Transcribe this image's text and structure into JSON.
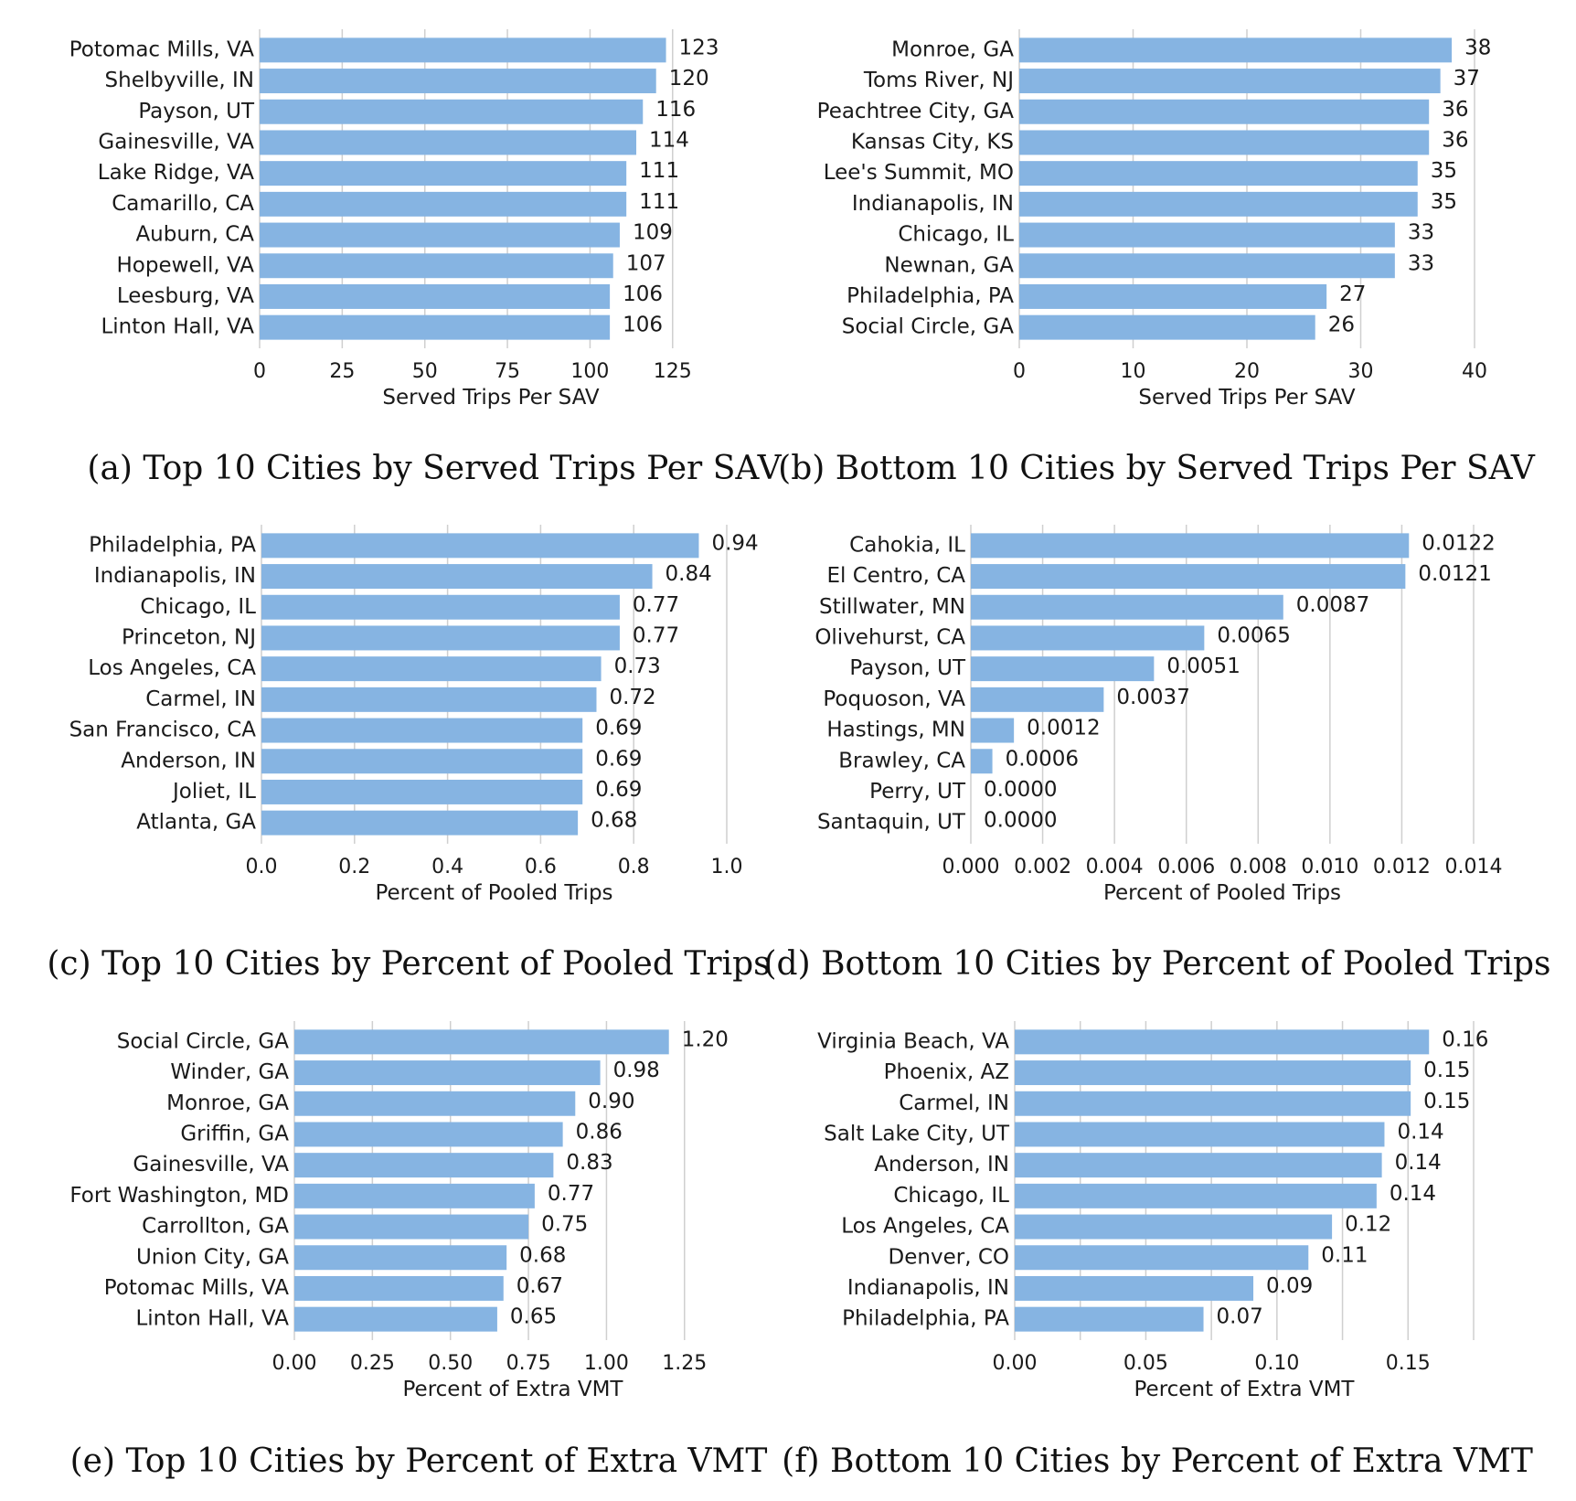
{
  "chart_data": [
    {
      "type": "bar",
      "orientation": "horizontal",
      "caption": "(a) Top 10 Cities by Served Trips Per SAV",
      "xlabel": "Served Trips Per SAV",
      "xlim": [
        0,
        140
      ],
      "xticks": [
        0,
        25,
        50,
        75,
        100,
        125
      ],
      "tick_labels": [
        "0",
        "25",
        "50",
        "75",
        "100",
        "125"
      ],
      "grid": "vertical",
      "categories": [
        "Potomac Mills, VA",
        "Shelbyville, IN",
        "Payson, UT",
        "Gainesville, VA",
        "Lake Ridge, VA",
        "Camarillo, CA",
        "Auburn, CA",
        "Hopewell, VA",
        "Leesburg, VA",
        "Linton Hall, VA"
      ],
      "values": [
        123,
        120,
        116,
        114,
        111,
        111,
        109,
        107,
        106,
        106
      ],
      "value_labels": [
        "123",
        "120",
        "116",
        "114",
        "111",
        "111",
        "109",
        "107",
        "106",
        "106"
      ],
      "bar_color": "#86b4e2"
    },
    {
      "type": "bar",
      "orientation": "horizontal",
      "caption": "(b) Bottom 10 Cities by Served Trips Per SAV",
      "xlabel": "Served Trips Per SAV",
      "xlim": [
        0,
        40
      ],
      "xticks": [
        0,
        10,
        20,
        30,
        40
      ],
      "tick_labels": [
        "0",
        "10",
        "20",
        "30",
        "40"
      ],
      "grid": "vertical",
      "categories": [
        "Monroe, GA",
        "Toms River, NJ",
        "Peachtree City, GA",
        "Kansas City, KS",
        "Lee's Summit, MO",
        "Indianapolis, IN",
        "Chicago, IL",
        "Newnan, GA",
        "Philadelphia, PA",
        "Social Circle, GA"
      ],
      "values": [
        38,
        37,
        36,
        36,
        35,
        35,
        33,
        33,
        27,
        26
      ],
      "value_labels": [
        "38",
        "37",
        "36",
        "36",
        "35",
        "35",
        "33",
        "33",
        "27",
        "26"
      ],
      "bar_color": "#86b4e2"
    },
    {
      "type": "bar",
      "orientation": "horizontal",
      "caption": "(c) Top 10 Cities by Percent of Pooled Trips",
      "xlabel": "Percent of Pooled Trips",
      "xlim": [
        0,
        1.0
      ],
      "xticks": [
        0,
        0.2,
        0.4,
        0.6,
        0.8,
        1.0
      ],
      "tick_labels": [
        "0.0",
        "0.2",
        "0.4",
        "0.6",
        "0.8",
        "1.0"
      ],
      "grid": "vertical",
      "categories": [
        "Philadelphia, PA",
        "Indianapolis, IN",
        "Chicago, IL",
        "Princeton, NJ",
        "Los Angeles, CA",
        "Carmel, IN",
        "San Francisco, CA",
        "Anderson, IN",
        "Joliet, IL",
        "Atlanta, GA"
      ],
      "values": [
        0.94,
        0.84,
        0.77,
        0.77,
        0.73,
        0.72,
        0.69,
        0.69,
        0.69,
        0.68
      ],
      "value_labels": [
        "0.94",
        "0.84",
        "0.77",
        "0.77",
        "0.73",
        "0.72",
        "0.69",
        "0.69",
        "0.69",
        "0.68"
      ],
      "bar_color": "#86b4e2"
    },
    {
      "type": "bar",
      "orientation": "horizontal",
      "caption": "(d) Bottom 10 Cities by Percent of Pooled Trips",
      "xlabel": "Percent of Pooled Trips",
      "xlim": [
        0,
        0.014
      ],
      "xticks": [
        0,
        0.002,
        0.004,
        0.006,
        0.008,
        0.01,
        0.012,
        0.014
      ],
      "tick_labels": [
        "0.000",
        "0.002",
        "0.004",
        "0.006",
        "0.008",
        "0.010",
        "0.012",
        "0.014"
      ],
      "grid": "vertical",
      "categories": [
        "Cahokia, IL",
        "El Centro, CA",
        "Stillwater, MN",
        "Olivehurst, CA",
        "Payson, UT",
        "Poquoson, VA",
        "Hastings, MN",
        "Brawley, CA",
        "Perry, UT",
        "Santaquin, UT"
      ],
      "values": [
        0.0122,
        0.0121,
        0.0087,
        0.0065,
        0.0051,
        0.0037,
        0.0012,
        0.0006,
        0.0,
        0.0
      ],
      "value_labels": [
        "0.0122",
        "0.0121",
        "0.0087",
        "0.0065",
        "0.0051",
        "0.0037",
        "0.0012",
        "0.0006",
        "0.0000",
        "0.0000"
      ],
      "bar_color": "#86b4e2"
    },
    {
      "type": "bar",
      "orientation": "horizontal",
      "caption": "(e) Top 10 Cities by Percent of Extra VMT",
      "xlabel": "Percent of Extra VMT",
      "xlim": [
        0,
        1.4
      ],
      "xticks": [
        0,
        0.25,
        0.5,
        0.75,
        1.0,
        1.25
      ],
      "tick_labels": [
        "0.00",
        "0.25",
        "0.50",
        "0.75",
        "1.00",
        "1.25"
      ],
      "grid": "vertical",
      "categories": [
        "Social Circle, GA",
        "Winder, GA",
        "Monroe, GA",
        "Griffin, GA",
        "Gainesville, VA",
        "Fort Washington, MD",
        "Carrollton, GA",
        "Union City, GA",
        "Potomac Mills, VA",
        "Linton Hall, VA"
      ],
      "values": [
        1.2,
        0.98,
        0.9,
        0.86,
        0.83,
        0.77,
        0.75,
        0.68,
        0.67,
        0.65
      ],
      "value_labels": [
        "1.20",
        "0.98",
        "0.90",
        "0.86",
        "0.83",
        "0.77",
        "0.75",
        "0.68",
        "0.67",
        "0.65"
      ],
      "bar_color": "#86b4e2"
    },
    {
      "type": "bar",
      "orientation": "horizontal",
      "caption": "(f) Bottom 10 Cities by Percent of Extra VMT",
      "xlabel": "Percent of Extra VMT",
      "xlim": [
        0,
        0.175
      ],
      "xticks": [
        0,
        0.05,
        0.1,
        0.15
      ],
      "tick_labels": [
        "0.00",
        "0.05",
        "0.10",
        "0.15"
      ],
      "minor_grid": [
        0.025,
        0.075,
        0.125,
        0.175
      ],
      "grid": "vertical",
      "categories": [
        "Virginia Beach, VA",
        "Phoenix, AZ",
        "Carmel, IN",
        "Salt Lake City, UT",
        "Anderson, IN",
        "Chicago, IL",
        "Los Angeles, CA",
        "Denver, CO",
        "Indianapolis, IN",
        "Philadelphia, PA"
      ],
      "values": [
        0.158,
        0.151,
        0.151,
        0.141,
        0.14,
        0.138,
        0.121,
        0.112,
        0.091,
        0.072
      ],
      "value_labels": [
        "0.16",
        "0.15",
        "0.15",
        "0.14",
        "0.14",
        "0.14",
        "0.12",
        "0.11",
        "0.09",
        "0.07"
      ],
      "bar_color": "#86b4e2"
    }
  ]
}
